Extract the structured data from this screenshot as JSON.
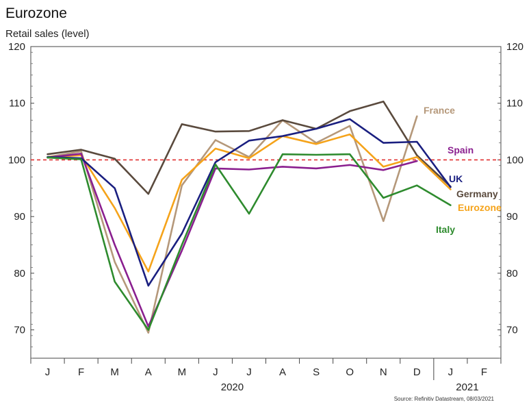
{
  "chart_data": {
    "type": "line",
    "title": "Eurozone",
    "subtitle": "Retail sales (level)",
    "source": "Source: Refinitiv Datastream, 08/03/2021",
    "categories": [
      "J",
      "F",
      "M",
      "A",
      "M",
      "J",
      "J",
      "A",
      "S",
      "O",
      "N",
      "D",
      "J",
      "F"
    ],
    "years": [
      {
        "label": "2020",
        "start_index": 0,
        "end_index": 11
      },
      {
        "label": "2021",
        "start_index": 12,
        "end_index": 13
      }
    ],
    "ylim": [
      65,
      120
    ],
    "yticks": [
      70,
      80,
      90,
      100,
      110,
      120
    ],
    "reference_line": {
      "y": 100,
      "color": "#e03030",
      "style": "dashed"
    },
    "grid": false,
    "series": [
      {
        "name": "France",
        "color": "#b5987a",
        "values": [
          100.5,
          101.5,
          82.0,
          69.5,
          95.5,
          103.5,
          100.5,
          107.0,
          103.0,
          106.0,
          89.2,
          107.7,
          null,
          null
        ]
      },
      {
        "name": "Germany",
        "color": "#5a4a3d",
        "values": [
          101.0,
          101.8,
          100.2,
          94.0,
          106.3,
          105.0,
          105.1,
          107.0,
          105.5,
          108.6,
          110.3,
          100.8,
          95.3,
          null
        ]
      },
      {
        "name": "Eurozone",
        "color": "#f5a31a",
        "values": [
          100.5,
          100.8,
          91.5,
          80.3,
          96.5,
          102.0,
          100.3,
          104.2,
          102.8,
          104.5,
          98.8,
          100.5,
          94.8,
          null
        ]
      },
      {
        "name": "Spain",
        "color": "#8a1f8f",
        "values": [
          100.4,
          101.1,
          85.0,
          70.6,
          84.0,
          98.5,
          98.3,
          98.8,
          98.5,
          99.1,
          98.2,
          99.8,
          null,
          null
        ]
      },
      {
        "name": "UK",
        "color": "#1a1f80",
        "values": [
          100.5,
          100.3,
          95.0,
          77.8,
          87.0,
          99.6,
          103.4,
          104.2,
          105.5,
          107.2,
          103.0,
          103.2,
          95.2,
          null
        ]
      },
      {
        "name": "Italy",
        "color": "#2e8b2e",
        "values": [
          100.4,
          100.1,
          78.5,
          70.0,
          85.0,
          99.2,
          90.5,
          101.0,
          100.9,
          101.0,
          93.3,
          95.5,
          92.0,
          null
        ]
      }
    ]
  }
}
